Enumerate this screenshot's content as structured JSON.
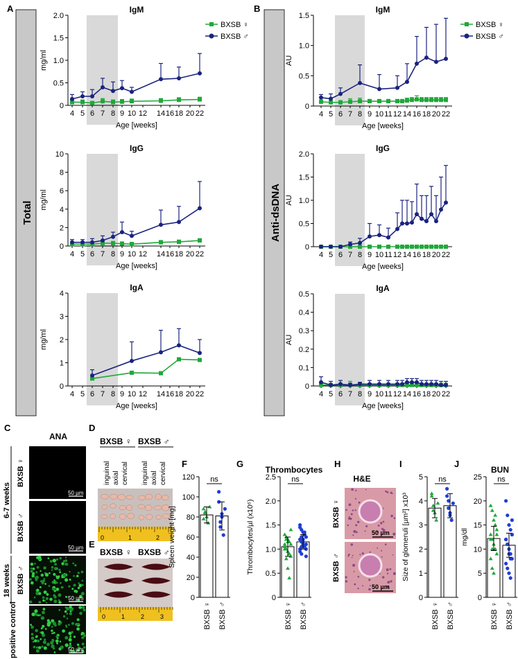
{
  "figure": {
    "panel_letters": {
      "A": "A",
      "B": "B",
      "C": "C",
      "D": "D",
      "E": "E",
      "F": "F",
      "G": "G",
      "H": "H",
      "I": "I",
      "J": "J"
    },
    "side_labels": {
      "total": "Total",
      "anti_dsdna": "Anti-dsDNA"
    },
    "legend": {
      "female": "BXSB ♀",
      "male": "BXSB ♂"
    },
    "colors": {
      "female": "#20a83a",
      "male": "#1a237e",
      "male_dots": "#1f3fd6",
      "shade": "#d9d9d9",
      "sidebar": "#c8c8c8"
    },
    "ana": {
      "title": "ANA",
      "groups": [
        "6-7 weeks",
        "18 weeks",
        "positive control"
      ],
      "rows": [
        "BXSB ♀",
        "BXSB ♂",
        "BXSB ♂",
        ""
      ],
      "scale": "50 µm"
    },
    "organs": {
      "header_female": "BXSB ♀",
      "header_male": "BXSB ♂",
      "nodes": [
        "inguinal",
        "axial",
        "cervical",
        "inguinal",
        "axial",
        "cervical"
      ],
      "ruler_d": [
        "0",
        "1",
        "2"
      ],
      "spleen_female": "BXSB ♀",
      "spleen_male": "BXSB ♂",
      "ruler_e": [
        "0",
        "1",
        "2",
        "3"
      ]
    },
    "he": {
      "title": "H&E",
      "rows": [
        "BXSB ♀",
        "BXSB ♂"
      ],
      "scale": "50 µm"
    },
    "ns": "ns",
    "x_tick_labels": [
      "BXSB ♀",
      "BXSB ♂"
    ]
  },
  "chart_data": [
    {
      "id": "total_igm",
      "type": "line",
      "title": "IgM",
      "ylabel": "mg/ml",
      "xlabel": "Age [weeks]",
      "ylim": [
        0,
        2.0
      ],
      "yticks": [
        "0",
        "0.5",
        "1.0",
        "1.5",
        "2.0"
      ],
      "categories": [
        "4",
        "5",
        "6",
        "7",
        "8",
        "9",
        "10",
        "12",
        "14",
        "16",
        "18",
        "20",
        "22"
      ],
      "shade": [
        "6",
        "8"
      ],
      "series": [
        {
          "name": "BXSB ♀",
          "x": [
            "4",
            "5",
            "6",
            "7",
            "8",
            "9",
            "10",
            "14",
            "18",
            "22"
          ],
          "values": [
            0.07,
            0.07,
            0.05,
            0.09,
            0.07,
            0.08,
            0.09,
            0.1,
            0.12,
            0.13
          ],
          "err": [
            0.05,
            0.05,
            0.04,
            0.06,
            0.05,
            0.05,
            0.05,
            0.05,
            0.05,
            0.05
          ]
        },
        {
          "name": "BXSB ♂",
          "x": [
            "4",
            "5",
            "6",
            "7",
            "8",
            "9",
            "10",
            "14",
            "18",
            "22"
          ],
          "values": [
            0.14,
            0.2,
            0.2,
            0.4,
            0.32,
            0.38,
            0.3,
            0.58,
            0.6,
            0.71
          ],
          "err": [
            0.1,
            0.1,
            0.15,
            0.2,
            0.2,
            0.17,
            0.1,
            0.35,
            0.25,
            0.44
          ]
        }
      ]
    },
    {
      "id": "total_igg",
      "type": "line",
      "title": "IgG",
      "ylabel": "mg/ml",
      "xlabel": "Age [weeks]",
      "ylim": [
        0,
        10
      ],
      "yticks": [
        "0",
        "2",
        "4",
        "6",
        "8",
        "10"
      ],
      "categories": [
        "4",
        "5",
        "6",
        "7",
        "8",
        "9",
        "10",
        "12",
        "14",
        "16",
        "18",
        "20",
        "22"
      ],
      "shade": [
        "6",
        "8"
      ],
      "series": [
        {
          "name": "BXSB ♀",
          "x": [
            "4",
            "5",
            "6",
            "7",
            "8",
            "9",
            "10",
            "14",
            "18",
            "22"
          ],
          "values": [
            0.2,
            0.2,
            0.2,
            0.3,
            0.3,
            0.25,
            0.2,
            0.4,
            0.45,
            0.6
          ],
          "err": [
            0.2,
            0.2,
            0.2,
            0.2,
            0.2,
            0.2,
            0.2,
            0.2,
            0.2,
            0.2
          ]
        },
        {
          "name": "BXSB ♂",
          "x": [
            "4",
            "5",
            "6",
            "7",
            "8",
            "9",
            "10",
            "14",
            "18",
            "22"
          ],
          "values": [
            0.4,
            0.4,
            0.4,
            0.6,
            1.0,
            1.5,
            1.1,
            2.3,
            2.6,
            4.1
          ],
          "err": [
            0.3,
            0.3,
            0.4,
            0.5,
            0.5,
            1.1,
            0.5,
            1.6,
            1.7,
            2.9
          ]
        }
      ]
    },
    {
      "id": "total_iga",
      "type": "line",
      "title": "IgA",
      "ylabel": "mg/ml",
      "xlabel": "Age [weeks]",
      "ylim": [
        0,
        4
      ],
      "yticks": [
        "0",
        "1",
        "2",
        "3",
        "4"
      ],
      "categories": [
        "4",
        "5",
        "6",
        "7",
        "8",
        "9",
        "10",
        "12",
        "14",
        "16",
        "18",
        "20",
        "22"
      ],
      "shade": [
        "6",
        "8"
      ],
      "series": [
        {
          "name": "BXSB ♀",
          "x": [
            "6",
            "10",
            "14",
            "18",
            "22"
          ],
          "values": [
            0.32,
            0.57,
            0.55,
            1.15,
            1.12
          ],
          "err": [
            0.05,
            0.05,
            0.05,
            0.05,
            0.05
          ]
        },
        {
          "name": "BXSB ♂",
          "x": [
            "6",
            "10",
            "14",
            "18",
            "22"
          ],
          "values": [
            0.45,
            1.08,
            1.45,
            1.75,
            1.42
          ],
          "err": [
            0.25,
            0.82,
            0.95,
            0.72,
            0.58
          ]
        }
      ]
    },
    {
      "id": "anti_igm",
      "type": "line",
      "title": "IgM",
      "ylabel": "AU",
      "xlabel": "Age [weeks]",
      "ylim": [
        0,
        1.5
      ],
      "yticks": [
        "0",
        "0.5",
        "1.0",
        "1.5"
      ],
      "categories": [
        "4",
        "5",
        "6",
        "7",
        "8",
        "9",
        "10",
        "11",
        "12",
        "13",
        "14",
        "15",
        "16",
        "17",
        "18",
        "19",
        "20",
        "21",
        "22"
      ],
      "shade": [
        "6",
        "8"
      ],
      "series": [
        {
          "name": "BXSB ♀",
          "x": [
            "4",
            "5",
            "6",
            "7",
            "8",
            "9",
            "10",
            "11",
            "12",
            "13",
            "14",
            "15",
            "16",
            "17",
            "18",
            "19",
            "20",
            "21",
            "22"
          ],
          "values": [
            0.07,
            0.06,
            0.06,
            0.07,
            0.08,
            0.08,
            0.08,
            0.08,
            0.08,
            0.08,
            0.09,
            0.1,
            0.11,
            0.1,
            0.1,
            0.1,
            0.1,
            0.1,
            0.1
          ],
          "err": [
            0.03,
            0.03,
            0.03,
            0.05,
            0.05,
            0.03,
            0.03,
            0.03,
            0.03,
            0.03,
            0.04,
            0.04,
            0.06,
            0.04,
            0.04,
            0.04,
            0.04,
            0.04,
            0.04
          ]
        },
        {
          "name": "BXSB ♂",
          "x": [
            "4",
            "5",
            "6",
            "8",
            "10",
            "12",
            "14",
            "16",
            "18",
            "20",
            "22"
          ],
          "values": [
            0.14,
            0.12,
            0.2,
            0.38,
            0.28,
            0.3,
            0.4,
            0.7,
            0.8,
            0.73,
            0.78
          ],
          "err": [
            0.05,
            0.08,
            0.1,
            0.3,
            0.24,
            0.2,
            0.3,
            0.45,
            0.5,
            0.62,
            0.67
          ]
        }
      ]
    },
    {
      "id": "anti_igg",
      "type": "line",
      "title": "IgG",
      "ylabel": "AU",
      "xlabel": "Age [weeks]",
      "ylim": [
        0,
        2.0
      ],
      "yticks": [
        "0",
        "0.5",
        "1.0",
        "1.5",
        "2.0"
      ],
      "categories": [
        "4",
        "5",
        "6",
        "7",
        "8",
        "9",
        "10",
        "11",
        "12",
        "13",
        "14",
        "15",
        "16",
        "17",
        "18",
        "19",
        "20",
        "21",
        "22"
      ],
      "shade": [
        "6",
        "8"
      ],
      "series": [
        {
          "name": "BXSB ♀",
          "x": [
            "4",
            "5",
            "6",
            "7",
            "8",
            "9",
            "10",
            "11",
            "12",
            "13",
            "14",
            "15",
            "16",
            "17",
            "18",
            "19",
            "20",
            "21",
            "22"
          ],
          "values": [
            0,
            0,
            0,
            0,
            0,
            0,
            0,
            0,
            0,
            0,
            0,
            0,
            0,
            0,
            0,
            0,
            0,
            0,
            0
          ],
          "err": [
            0,
            0,
            0,
            0,
            0,
            0,
            0,
            0,
            0,
            0,
            0,
            0,
            0,
            0,
            0,
            0,
            0,
            0,
            0
          ]
        },
        {
          "name": "BXSB ♂",
          "x": [
            "4",
            "5",
            "6",
            "7",
            "8",
            "9",
            "10",
            "11",
            "12",
            "13",
            "14",
            "15",
            "16",
            "17",
            "18",
            "19",
            "20",
            "21",
            "22"
          ],
          "values": [
            0,
            0,
            0,
            0.05,
            0.08,
            0.22,
            0.25,
            0.2,
            0.38,
            0.5,
            0.5,
            0.52,
            0.7,
            0.6,
            0.55,
            0.7,
            0.55,
            0.8,
            0.95
          ],
          "err": [
            0,
            0,
            0,
            0.05,
            0.1,
            0.28,
            0.22,
            0.2,
            0.35,
            0.5,
            0.5,
            0.45,
            0.65,
            0.5,
            0.55,
            0.6,
            0.55,
            0.7,
            0.8
          ]
        }
      ]
    },
    {
      "id": "anti_iga",
      "type": "line",
      "title": "IgA",
      "ylabel": "AU",
      "xlabel": "Age [weeks]",
      "ylim": [
        0,
        0.5
      ],
      "yticks": [
        "0",
        "0.1",
        "0.2",
        "0.3",
        "0.4",
        "0.5"
      ],
      "categories": [
        "4",
        "5",
        "6",
        "7",
        "8",
        "9",
        "10",
        "11",
        "12",
        "13",
        "14",
        "15",
        "16",
        "17",
        "18",
        "19",
        "20",
        "21",
        "22"
      ],
      "shade": [
        "6",
        "8"
      ],
      "series": [
        {
          "name": "BXSB ♀",
          "x": [
            "4",
            "5",
            "6",
            "7",
            "8",
            "9",
            "10",
            "11",
            "12",
            "13",
            "14",
            "15",
            "16",
            "17",
            "18",
            "19",
            "20",
            "21",
            "22"
          ],
          "values": [
            0.005,
            0.005,
            0.005,
            0.005,
            0.005,
            0.005,
            0.005,
            0.005,
            0.005,
            0.005,
            0.005,
            0.005,
            0.005,
            0.005,
            0.005,
            0.005,
            0.005,
            0.005,
            0.005
          ],
          "err": [
            0.01,
            0.01,
            0.01,
            0.02,
            0.015,
            0.01,
            0.01,
            0.01,
            0.01,
            0.01,
            0.01,
            0.01,
            0.01,
            0.01,
            0.01,
            0.01,
            0.01,
            0.01,
            0.01
          ]
        },
        {
          "name": "BXSB ♂",
          "x": [
            "4",
            "5",
            "6",
            "7",
            "8",
            "9",
            "10",
            "11",
            "12",
            "13",
            "14",
            "15",
            "16",
            "17",
            "18",
            "19",
            "20",
            "21",
            "22"
          ],
          "values": [
            0.02,
            0.005,
            0.01,
            0.005,
            0.01,
            0.01,
            0.01,
            0.01,
            0.01,
            0.01,
            0.02,
            0.02,
            0.02,
            0.01,
            0.01,
            0.01,
            0.01,
            0.005,
            0.005
          ],
          "err": [
            0.03,
            0.02,
            0.02,
            0.01,
            0.01,
            0.02,
            0.02,
            0.02,
            0.02,
            0.02,
            0.02,
            0.02,
            0.02,
            0.02,
            0.02,
            0.02,
            0.02,
            0.02,
            0.02
          ]
        }
      ]
    },
    {
      "id": "spleen",
      "type": "bar",
      "title": "",
      "ylabel": "Spleen weight [mg]",
      "ylim": [
        0,
        120
      ],
      "yticks": [
        "0",
        "20",
        "40",
        "60",
        "80",
        "100",
        "120"
      ],
      "categories": [
        "BXSB ♀",
        "BXSB ♂"
      ],
      "values": [
        82,
        81
      ],
      "err": [
        8,
        14
      ],
      "points": [
        [
          88,
          85,
          80,
          74,
          90,
          78,
          84
        ],
        [
          95,
          70,
          80,
          62,
          88,
          105,
          75,
          83
        ]
      ]
    },
    {
      "id": "thrombocytes",
      "type": "bar",
      "title": "Thrombocytes",
      "ylabel": "Thrombocytes/µl (x10⁶)",
      "ylim": [
        0,
        2.5
      ],
      "yticks": [
        "0",
        "0.5",
        "1.0",
        "1.5",
        "2.0",
        "2.5"
      ],
      "categories": [
        "BXSB ♀",
        "BXSB ♂"
      ],
      "values": [
        1.05,
        1.15
      ],
      "err": [
        0.2,
        0.15
      ],
      "points": [
        [
          1.3,
          1.25,
          1.2,
          1.15,
          1.1,
          1.05,
          1.0,
          0.95,
          0.9,
          0.85,
          1.1,
          1.2,
          0.6,
          0.4,
          1.4,
          1.0,
          0.8,
          1.15
        ],
        [
          1.5,
          1.4,
          1.35,
          1.3,
          1.25,
          1.2,
          1.15,
          1.1,
          1.05,
          1.0,
          0.95,
          0.9,
          1.2,
          1.3,
          1.1,
          1.0,
          1.25,
          1.15,
          1.35,
          0.85,
          1.45,
          1.05
        ]
      ]
    },
    {
      "id": "glomeruli",
      "type": "bar",
      "title": "",
      "ylabel": "Size of glomeruli [µm²] x10³",
      "ylim": [
        0,
        5
      ],
      "yticks": [
        "0",
        "1",
        "2",
        "3",
        "4",
        "5"
      ],
      "categories": [
        "BXSB ♀",
        "BXSB ♂"
      ],
      "values": [
        3.7,
        3.8
      ],
      "err": [
        0.4,
        0.5
      ],
      "points": [
        [
          4.2,
          3.8,
          3.5,
          3.2,
          3.9,
          4.3,
          3.6
        ],
        [
          4.5,
          4.0,
          3.5,
          3.2,
          3.9,
          4.2,
          3.7,
          3.4
        ]
      ]
    },
    {
      "id": "bun",
      "type": "bar",
      "title": "BUN",
      "ylabel": "mg/dl",
      "ylim": [
        0,
        25
      ],
      "yticks": [
        "0",
        "5",
        "10",
        "15",
        "20",
        "25"
      ],
      "categories": [
        "BXSB ♀",
        "BXSB ♂"
      ],
      "values": [
        12.2,
        10.8
      ],
      "err": [
        2.5,
        2.5
      ],
      "points": [
        [
          19,
          18,
          16,
          15,
          14,
          13,
          12,
          11,
          10,
          9,
          8,
          6,
          5,
          17,
          13,
          12,
          10
        ],
        [
          20,
          17,
          15,
          14,
          13,
          12,
          11,
          10,
          9,
          8,
          7,
          6,
          5,
          4,
          16,
          12,
          11,
          9,
          8,
          13
        ]
      ]
    }
  ]
}
